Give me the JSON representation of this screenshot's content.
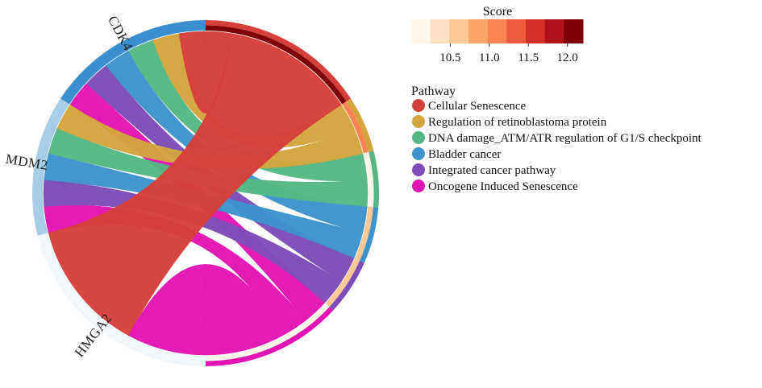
{
  "genes": [
    {
      "id": "CDK4",
      "label": "CDK4",
      "color": "#3b8fcf"
    },
    {
      "id": "MDM2",
      "label": "MDM2",
      "color": "#a8cde6"
    },
    {
      "id": "HMGA2",
      "label": "HMGA2",
      "color": "#f2f7fc"
    }
  ],
  "pathways": [
    {
      "id": "cs",
      "label": "Cellular Senescence",
      "color": "#d6403a",
      "score": 12.2
    },
    {
      "id": "rb",
      "label": "Regulation of retinoblastoma protein",
      "color": "#d4a53f",
      "score": 11.0
    },
    {
      "id": "dna",
      "label": "DNA damage_ATM/ATR regulation of G1/S checkpoint",
      "color": "#55b884",
      "score": 10.0
    },
    {
      "id": "bc",
      "label": "Bladder cancer",
      "color": "#3e93cd",
      "score": 10.6
    },
    {
      "id": "icp",
      "label": "Integrated cancer pathway",
      "color": "#7d4cb8",
      "score": 10.6
    },
    {
      "id": "ois",
      "label": "Oncogene Induced Senescence",
      "color": "#e215b4",
      "score": 10.2
    }
  ],
  "links": [
    {
      "gene": "CDK4",
      "pathway": "ois",
      "value": 2
    },
    {
      "gene": "CDK4",
      "pathway": "icp",
      "value": 2
    },
    {
      "gene": "CDK4",
      "pathway": "bc",
      "value": 2
    },
    {
      "gene": "CDK4",
      "pathway": "dna",
      "value": 2
    },
    {
      "gene": "CDK4",
      "pathway": "rb",
      "value": 2
    },
    {
      "gene": "CDK4",
      "pathway": "cs",
      "value": 2
    },
    {
      "gene": "MDM2",
      "pathway": "ois",
      "value": 2
    },
    {
      "gene": "MDM2",
      "pathway": "icp",
      "value": 2
    },
    {
      "gene": "MDM2",
      "pathway": "bc",
      "value": 2
    },
    {
      "gene": "MDM2",
      "pathway": "dna",
      "value": 2
    },
    {
      "gene": "MDM2",
      "pathway": "rb",
      "value": 2
    },
    {
      "gene": "HMGA2",
      "pathway": "cs",
      "value": 10
    },
    {
      "gene": "HMGA2",
      "pathway": "ois",
      "value": 6
    }
  ],
  "legend": {
    "score_title": "Score",
    "score_ticks": [
      "10.5",
      "11.0",
      "11.5",
      "12.0"
    ],
    "score_tick_values": [
      10.5,
      11.0,
      11.5,
      12.0
    ],
    "score_range": [
      10.0,
      12.2
    ],
    "score_colors": [
      "#fff6ea",
      "#fee1c2",
      "#fdc894",
      "#fca56a",
      "#f88452",
      "#ee5b3c",
      "#d6302a",
      "#b11118",
      "#7d0007"
    ],
    "pathway_title": "Pathway"
  }
}
